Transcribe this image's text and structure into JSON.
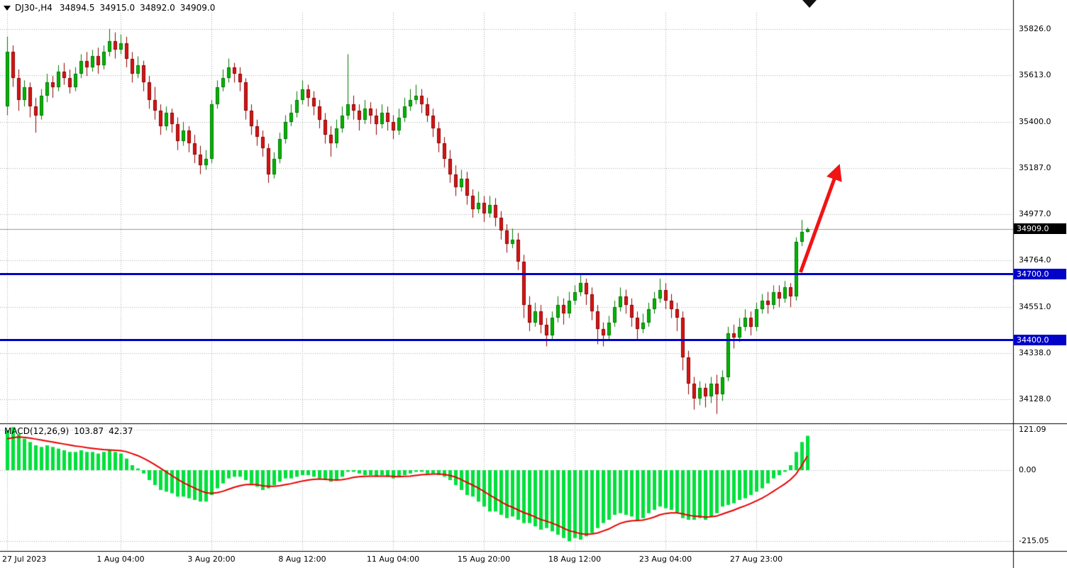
{
  "header": {
    "symbol_period": "DJ30-,H4",
    "open": "34894.5",
    "high": "34915.0",
    "low": "34892.0",
    "close": "34909.0"
  },
  "macd_panel": {
    "label": "MACD(12,26,9)",
    "main_value": "103.87",
    "signal_value": "42.37",
    "axis_ticks": [
      "121.09",
      "0.00",
      "-215.05"
    ]
  },
  "price_axis": {
    "ticks": [
      "35826.0",
      "35613.0",
      "35400.0",
      "35187.0",
      "34977.0",
      "34764.0",
      "34551.0",
      "34338.0",
      "34128.0"
    ],
    "current_price_tag": {
      "value": "34909.0",
      "bg": "#000000",
      "fg": "#ffffff"
    }
  },
  "time_axis": {
    "labels": [
      {
        "text": "27 Jul 2023",
        "i": 0
      },
      {
        "text": "1 Aug 04:00",
        "i": 20
      },
      {
        "text": "3 Aug 20:00",
        "i": 36
      },
      {
        "text": "8 Aug 12:00",
        "i": 52
      },
      {
        "text": "11 Aug 04:00",
        "i": 68
      },
      {
        "text": "15 Aug 20:00",
        "i": 84
      },
      {
        "text": "18 Aug 12:00",
        "i": 100
      },
      {
        "text": "23 Aug 04:00",
        "i": 116
      },
      {
        "text": "27 Aug 23:00",
        "i": 132
      }
    ]
  },
  "chart_data": {
    "type": "candlestick+macd",
    "symbol": "DJ30-",
    "timeframe": "H4",
    "ylim_main": [
      34030,
      35900
    ],
    "ylim_macd": [
      -240,
      135
    ],
    "current_price": 34909.0,
    "levels": [
      {
        "price": 34700.0,
        "label": "34700.0",
        "color": "#0202c8"
      },
      {
        "price": 34400.0,
        "label": "34400.0",
        "color": "#0202c8"
      }
    ],
    "arrow": {
      "from": {
        "i": 139.8,
        "price": 34710
      },
      "to": {
        "i": 146.2,
        "price": 35170
      },
      "color": "#f01414"
    },
    "colors": {
      "up": {
        "fill": "#00b400",
        "border": "#007800"
      },
      "down": {
        "fill": "#d41616",
        "border": "#8f0000"
      },
      "macd_bar": "#00e03c",
      "macd_signal": "#e80000",
      "grid": "#adadad",
      "bid_line": "#9a9a9a",
      "frame": "#000000"
    },
    "candles": [
      [
        35470,
        35790,
        35430,
        35720
      ],
      [
        35720,
        35750,
        35560,
        35600
      ],
      [
        35600,
        35640,
        35450,
        35500
      ],
      [
        35500,
        35590,
        35470,
        35560
      ],
      [
        35560,
        35580,
        35420,
        35470
      ],
      [
        35470,
        35510,
        35350,
        35430
      ],
      [
        35430,
        35550,
        35410,
        35520
      ],
      [
        35520,
        35620,
        35490,
        35580
      ],
      [
        35580,
        35610,
        35510,
        35560
      ],
      [
        35560,
        35660,
        35540,
        35630
      ],
      [
        35630,
        35670,
        35570,
        35600
      ],
      [
        35600,
        35640,
        35530,
        35560
      ],
      [
        35560,
        35650,
        35540,
        35620
      ],
      [
        35620,
        35710,
        35600,
        35680
      ],
      [
        35680,
        35720,
        35610,
        35650
      ],
      [
        35650,
        35730,
        35630,
        35700
      ],
      [
        35700,
        35740,
        35620,
        35660
      ],
      [
        35660,
        35750,
        35640,
        35720
      ],
      [
        35720,
        35826,
        35700,
        35770
      ],
      [
        35770,
        35810,
        35690,
        35730
      ],
      [
        35730,
        35800,
        35710,
        35760
      ],
      [
        35760,
        35790,
        35650,
        35690
      ],
      [
        35690,
        35720,
        35580,
        35620
      ],
      [
        35620,
        35700,
        35600,
        35660
      ],
      [
        35660,
        35680,
        35540,
        35580
      ],
      [
        35580,
        35610,
        35460,
        35500
      ],
      [
        35500,
        35560,
        35410,
        35450
      ],
      [
        35450,
        35480,
        35340,
        35380
      ],
      [
        35380,
        35470,
        35360,
        35440
      ],
      [
        35440,
        35460,
        35350,
        35390
      ],
      [
        35390,
        35420,
        35270,
        35310
      ],
      [
        35310,
        35400,
        35290,
        35360
      ],
      [
        35360,
        35380,
        35260,
        35300
      ],
      [
        35300,
        35340,
        35210,
        35250
      ],
      [
        35250,
        35290,
        35160,
        35200
      ],
      [
        35200,
        35270,
        35180,
        35230
      ],
      [
        35230,
        35500,
        35210,
        35480
      ],
      [
        35480,
        35590,
        35460,
        35560
      ],
      [
        35560,
        35640,
        35540,
        35600
      ],
      [
        35600,
        35690,
        35580,
        35650
      ],
      [
        35650,
        35670,
        35580,
        35620
      ],
      [
        35620,
        35650,
        35540,
        35580
      ],
      [
        35580,
        35600,
        35410,
        35450
      ],
      [
        35450,
        35480,
        35340,
        35380
      ],
      [
        35380,
        35410,
        35290,
        35330
      ],
      [
        35330,
        35360,
        35240,
        35280
      ],
      [
        35280,
        35300,
        35120,
        35160
      ],
      [
        35160,
        35260,
        35140,
        35230
      ],
      [
        35230,
        35350,
        35210,
        35320
      ],
      [
        35320,
        35430,
        35300,
        35400
      ],
      [
        35400,
        35480,
        35380,
        35440
      ],
      [
        35440,
        35540,
        35420,
        35500
      ],
      [
        35500,
        35590,
        35480,
        35550
      ],
      [
        35550,
        35570,
        35470,
        35510
      ],
      [
        35510,
        35540,
        35430,
        35470
      ],
      [
        35470,
        35500,
        35370,
        35410
      ],
      [
        35410,
        35440,
        35300,
        35340
      ],
      [
        35340,
        35380,
        35240,
        35300
      ],
      [
        35300,
        35410,
        35280,
        35370
      ],
      [
        35370,
        35470,
        35350,
        35430
      ],
      [
        35430,
        35710,
        35410,
        35480
      ],
      [
        35480,
        35520,
        35410,
        35450
      ],
      [
        35450,
        35480,
        35360,
        35410
      ],
      [
        35410,
        35500,
        35390,
        35460
      ],
      [
        35460,
        35490,
        35390,
        35430
      ],
      [
        35430,
        35460,
        35340,
        35390
      ],
      [
        35390,
        35480,
        35370,
        35440
      ],
      [
        35440,
        35470,
        35360,
        35400
      ],
      [
        35400,
        35430,
        35320,
        35360
      ],
      [
        35360,
        35460,
        35340,
        35420
      ],
      [
        35420,
        35510,
        35400,
        35470
      ],
      [
        35470,
        35550,
        35450,
        35500
      ],
      [
        35500,
        35570,
        35480,
        35520
      ],
      [
        35520,
        35550,
        35440,
        35480
      ],
      [
        35480,
        35510,
        35400,
        35430
      ],
      [
        35430,
        35460,
        35330,
        35370
      ],
      [
        35370,
        35400,
        35260,
        35300
      ],
      [
        35300,
        35330,
        35190,
        35230
      ],
      [
        35230,
        35270,
        35120,
        35160
      ],
      [
        35160,
        35200,
        35060,
        35100
      ],
      [
        35100,
        35180,
        35080,
        35140
      ],
      [
        35140,
        35170,
        35020,
        35060
      ],
      [
        35060,
        35090,
        34960,
        35000
      ],
      [
        35000,
        35080,
        34980,
        35030
      ],
      [
        35030,
        35060,
        34940,
        34980
      ],
      [
        34980,
        35060,
        34960,
        35020
      ],
      [
        35020,
        35050,
        34920,
        34960
      ],
      [
        34960,
        34990,
        34860,
        34900
      ],
      [
        34900,
        34930,
        34800,
        34840
      ],
      [
        34840,
        34910,
        34820,
        34860
      ],
      [
        34860,
        34890,
        34720,
        34760
      ],
      [
        34760,
        34790,
        34500,
        34560
      ],
      [
        34560,
        34600,
        34440,
        34480
      ],
      [
        34480,
        34570,
        34460,
        34530
      ],
      [
        34530,
        34560,
        34430,
        34470
      ],
      [
        34470,
        34500,
        34370,
        34420
      ],
      [
        34420,
        34530,
        34400,
        34500
      ],
      [
        34500,
        34600,
        34480,
        34560
      ],
      [
        34560,
        34590,
        34470,
        34520
      ],
      [
        34520,
        34620,
        34500,
        34580
      ],
      [
        34580,
        34650,
        34560,
        34620
      ],
      [
        34620,
        34700,
        34600,
        34660
      ],
      [
        34660,
        34680,
        34560,
        34610
      ],
      [
        34610,
        34640,
        34490,
        34530
      ],
      [
        34530,
        34560,
        34380,
        34450
      ],
      [
        34450,
        34480,
        34370,
        34420
      ],
      [
        34420,
        34510,
        34400,
        34480
      ],
      [
        34480,
        34580,
        34460,
        34550
      ],
      [
        34550,
        34640,
        34530,
        34600
      ],
      [
        34600,
        34630,
        34520,
        34560
      ],
      [
        34560,
        34590,
        34460,
        34500
      ],
      [
        34500,
        34530,
        34400,
        34450
      ],
      [
        34450,
        34520,
        34430,
        34480
      ],
      [
        34480,
        34570,
        34460,
        34540
      ],
      [
        34540,
        34620,
        34520,
        34590
      ],
      [
        34590,
        34680,
        34570,
        34630
      ],
      [
        34630,
        34660,
        34540,
        34580
      ],
      [
        34580,
        34610,
        34500,
        34540
      ],
      [
        34540,
        34570,
        34440,
        34500
      ],
      [
        34500,
        34530,
        34260,
        34320
      ],
      [
        34320,
        34350,
        34150,
        34200
      ],
      [
        34200,
        34230,
        34080,
        34130
      ],
      [
        34130,
        34210,
        34100,
        34180
      ],
      [
        34180,
        34200,
        34090,
        34140
      ],
      [
        34140,
        34230,
        34110,
        34200
      ],
      [
        34200,
        34240,
        34060,
        34150
      ],
      [
        34150,
        34260,
        34120,
        34230
      ],
      [
        34230,
        34460,
        34210,
        34430
      ],
      [
        34430,
        34470,
        34360,
        34410
      ],
      [
        34410,
        34500,
        34390,
        34460
      ],
      [
        34460,
        34540,
        34440,
        34500
      ],
      [
        34500,
        34530,
        34420,
        34460
      ],
      [
        34460,
        34570,
        34440,
        34540
      ],
      [
        34540,
        34610,
        34520,
        34580
      ],
      [
        34580,
        34620,
        34520,
        34560
      ],
      [
        34560,
        34650,
        34540,
        34620
      ],
      [
        34620,
        34650,
        34550,
        34590
      ],
      [
        34590,
        34670,
        34570,
        34640
      ],
      [
        34640,
        34660,
        34550,
        34600
      ],
      [
        34600,
        34870,
        34580,
        34850
      ],
      [
        34850,
        34950,
        34830,
        34895
      ],
      [
        34894.5,
        34915,
        34892,
        34909
      ]
    ],
    "macd_histogram": [
      120,
      130,
      110,
      95,
      85,
      75,
      70,
      75,
      70,
      65,
      60,
      55,
      55,
      60,
      55,
      55,
      50,
      55,
      60,
      55,
      50,
      35,
      15,
      5,
      -10,
      -30,
      -45,
      -60,
      -65,
      -70,
      -80,
      -80,
      -85,
      -90,
      -95,
      -95,
      -75,
      -55,
      -40,
      -25,
      -20,
      -20,
      -30,
      -40,
      -50,
      -60,
      -55,
      -45,
      -35,
      -25,
      -25,
      -20,
      -15,
      -15,
      -20,
      -25,
      -30,
      -35,
      -30,
      -20,
      -5,
      -5,
      -10,
      -15,
      -15,
      -20,
      -15,
      -20,
      -25,
      -20,
      -15,
      -10,
      -5,
      -5,
      -10,
      -10,
      -15,
      -20,
      -30,
      -45,
      -60,
      -75,
      -80,
      -95,
      -110,
      -125,
      -125,
      -135,
      -145,
      -140,
      -150,
      -160,
      -160,
      -170,
      -180,
      -175,
      -185,
      -195,
      -205,
      -215,
      -205,
      -210,
      -200,
      -190,
      -175,
      -160,
      -150,
      -135,
      -130,
      -135,
      -140,
      -150,
      -145,
      -130,
      -120,
      -110,
      -115,
      -120,
      -130,
      -145,
      -150,
      -150,
      -145,
      -150,
      -140,
      -130,
      -110,
      -105,
      -100,
      -90,
      -85,
      -75,
      -65,
      -55,
      -40,
      -25,
      -15,
      -5,
      15,
      55,
      85,
      103.87
    ],
    "macd_signal": [
      95,
      98,
      100,
      99,
      97,
      94,
      91,
      88,
      85,
      82,
      79,
      76,
      73,
      71,
      68,
      66,
      64,
      62,
      61,
      60,
      59,
      56,
      50,
      44,
      36,
      27,
      17,
      6,
      -5,
      -16,
      -27,
      -37,
      -46,
      -54,
      -62,
      -68,
      -70,
      -68,
      -64,
      -58,
      -52,
      -47,
      -44,
      -43,
      -44,
      -47,
      -49,
      -49,
      -47,
      -44,
      -41,
      -37,
      -33,
      -30,
      -28,
      -27,
      -28,
      -29,
      -30,
      -29,
      -26,
      -22,
      -20,
      -19,
      -18,
      -18,
      -18,
      -18,
      -19,
      -20,
      -19,
      -18,
      -16,
      -14,
      -13,
      -12,
      -12,
      -13,
      -16,
      -21,
      -28,
      -37,
      -45,
      -54,
      -64,
      -75,
      -85,
      -95,
      -105,
      -112,
      -120,
      -128,
      -134,
      -141,
      -149,
      -154,
      -160,
      -167,
      -175,
      -183,
      -187,
      -192,
      -194,
      -193,
      -190,
      -184,
      -178,
      -169,
      -161,
      -156,
      -153,
      -152,
      -151,
      -147,
      -142,
      -135,
      -131,
      -129,
      -129,
      -132,
      -136,
      -139,
      -140,
      -142,
      -141,
      -139,
      -133,
      -127,
      -121,
      -114,
      -108,
      -101,
      -93,
      -85,
      -75,
      -64,
      -53,
      -42,
      -29,
      -12,
      14,
      42.37
    ]
  }
}
